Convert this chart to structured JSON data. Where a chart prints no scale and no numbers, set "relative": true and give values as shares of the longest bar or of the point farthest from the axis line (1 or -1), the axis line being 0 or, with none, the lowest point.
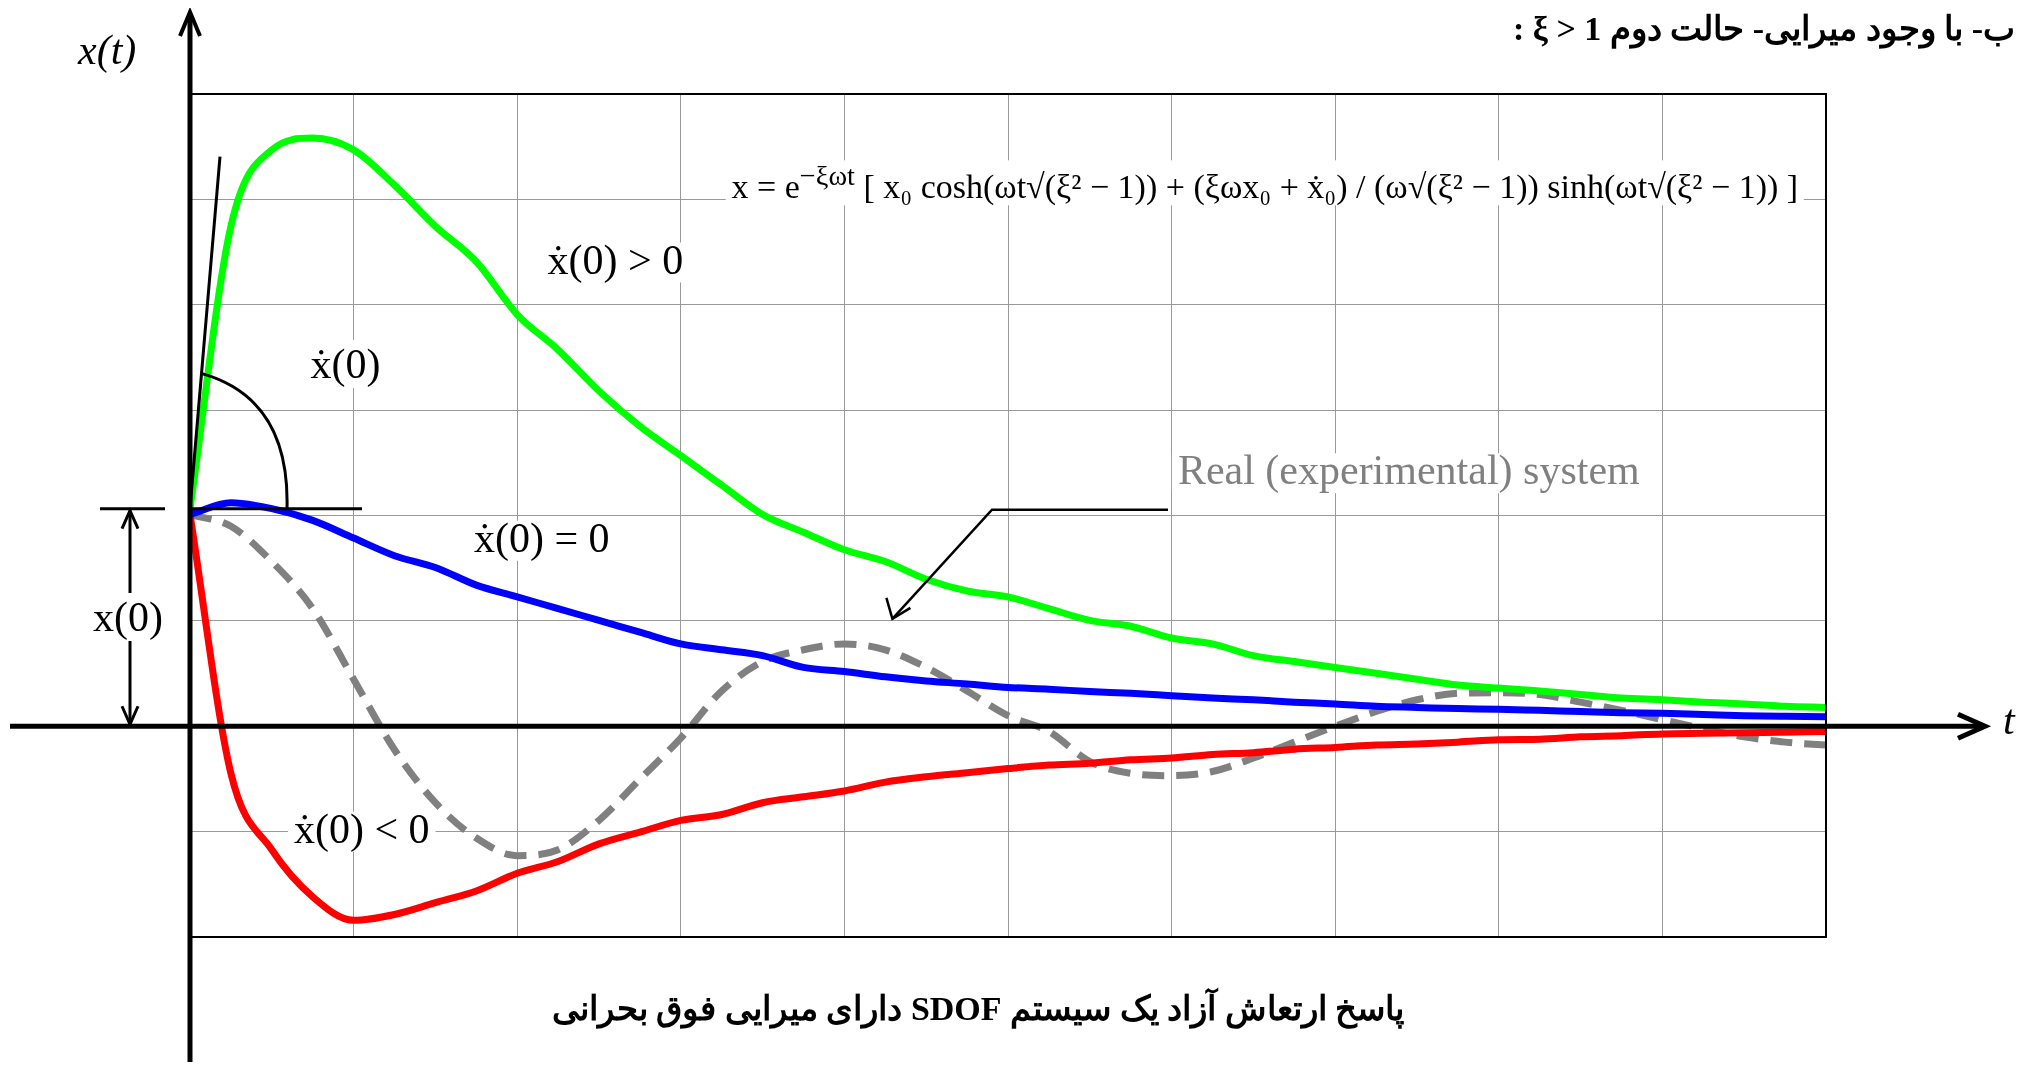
{
  "chart_data": {
    "type": "line",
    "title": "ب- با وجود میرایی- حالت دوم  ξ > 1 :",
    "xlabel": "t",
    "ylabel": "x(t)",
    "relative": true,
    "grid": true,
    "legend": false,
    "marker": "none",
    "categories": [
      null,
      null,
      null,
      null,
      null,
      null,
      null,
      null,
      null,
      null,
      null,
      null,
      null,
      null,
      null,
      null,
      null,
      null,
      null,
      null,
      null,
      null,
      null,
      null,
      null,
      null,
      null,
      null,
      null,
      null,
      null,
      null,
      null,
      null,
      null,
      null,
      null,
      null,
      null,
      null,
      null
    ],
    "series": [
      {
        "name": "ẋ(0) > 0",
        "color": "#00ff00",
        "line_style": "solid",
        "values": [
          0.37,
          0.85,
          0.98,
          1,
          0.98,
          0.92,
          0.85,
          0.79,
          0.7,
          0.64,
          0.57,
          0.51,
          0.46,
          0.41,
          0.36,
          0.33,
          0.3,
          0.28,
          0.25,
          0.23,
          0.22,
          0.2,
          0.18,
          0.17,
          0.15,
          0.14,
          0.12,
          0.11,
          0.1,
          0.09,
          0.08,
          0.07,
          0.065,
          0.06,
          0.054,
          0.048,
          0.045,
          0.041,
          0.038,
          0.034,
          0.032
        ]
      },
      {
        "name": "ẋ(0) = 0",
        "color": "#0000ff",
        "line_style": "solid",
        "values": [
          0.36,
          0.38,
          0.37,
          0.35,
          0.32,
          0.29,
          0.27,
          0.24,
          0.22,
          0.2,
          0.18,
          0.16,
          0.14,
          0.13,
          0.12,
          0.1,
          0.093,
          0.084,
          0.077,
          0.072,
          0.066,
          0.063,
          0.059,
          0.056,
          0.052,
          0.048,
          0.045,
          0.041,
          0.038,
          0.034,
          0.032,
          0.03,
          0.029,
          0.027,
          0.025,
          0.023,
          0.022,
          0.02,
          0.018,
          0.017,
          0.016
        ]
      },
      {
        "name": "ẋ(0) < 0",
        "color": "#ff0000",
        "line_style": "solid",
        "values": [
          0.36,
          -0.08,
          -0.21,
          -0.29,
          -0.33,
          -0.32,
          -0.3,
          -0.28,
          -0.25,
          -0.23,
          -0.2,
          -0.18,
          -0.16,
          -0.15,
          -0.13,
          -0.12,
          -0.11,
          -0.095,
          -0.086,
          -0.079,
          -0.072,
          -0.066,
          -0.063,
          -0.057,
          -0.054,
          -0.048,
          -0.045,
          -0.039,
          -0.036,
          -0.032,
          -0.03,
          -0.027,
          -0.023,
          -0.022,
          -0.018,
          -0.016,
          -0.013,
          -0.012,
          -0.011,
          -0.01,
          -0.009
        ]
      },
      {
        "name": "Real (experimental) system",
        "color": "#808080",
        "line_style": "dashed",
        "values": [
          0.36,
          0.34,
          0.28,
          0.2,
          0.08,
          -0.04,
          -0.13,
          -0.19,
          -0.22,
          -0.21,
          -0.16,
          -0.09,
          -0.02,
          0.06,
          0.11,
          0.13,
          0.14,
          0.13,
          0.1,
          0.06,
          0.018,
          -0.009,
          -0.06,
          -0.08,
          -0.084,
          -0.077,
          -0.054,
          -0.027,
          0,
          0.025,
          0.045,
          0.056,
          0.057,
          0.054,
          0.041,
          0.027,
          0.011,
          -0.004,
          -0.018,
          -0.027,
          -0.032
        ]
      }
    ],
    "annotations": [
      "x = e$^{−ξωt}$ [ x₀ cosh(ωt√(ξ² − 1)) + (ξωx₀ + ẋ₀) / (ω√(ξ² − 1)) sinh(ωt√(ξ² − 1)) ]",
      "ẋ(0)",
      "x(0)",
      "پاسخ ارتعاش آزاد یک سیستم SDOF دارای میرایی فوق بحرانی"
    ]
  }
}
